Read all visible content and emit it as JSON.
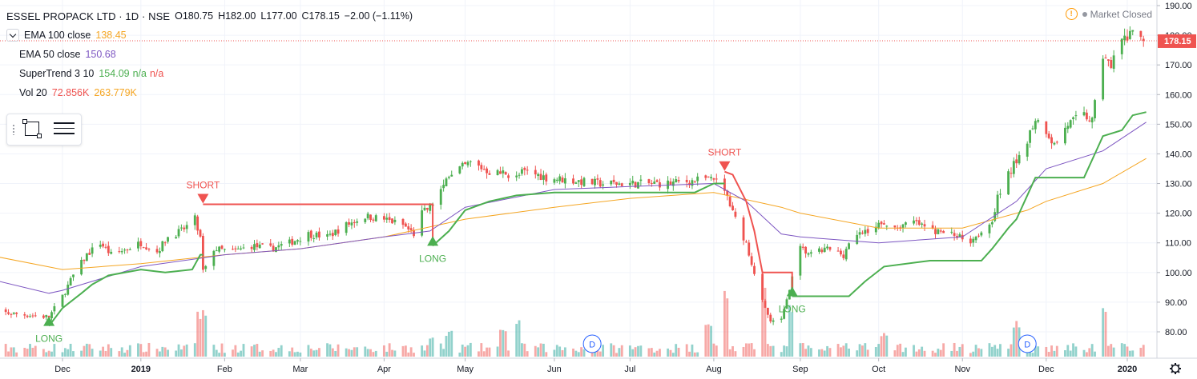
{
  "header": {
    "title": "ESSEL PROPACK LTD · 1D · NSE",
    "open": "O180.75",
    "high": "H182.00",
    "low": "L177.00",
    "close": "C178.15",
    "change": "−2.00 (−1.11%)"
  },
  "indicators": [
    {
      "name": "EMA 100 close",
      "value": "138.45",
      "color": "#f5a623"
    },
    {
      "name": "EMA 50 close",
      "value": "150.68",
      "color": "#7e57c2"
    },
    {
      "name": "SuperTrend 3 10",
      "value": "154.09 n/a n/a",
      "value_parts": [
        "154.09",
        "n/a",
        "n/a"
      ],
      "colors": [
        "#4caf50",
        "#4caf50",
        "#ef5350"
      ]
    },
    {
      "name": "Vol 20",
      "value": "72.856K 263.779K",
      "value_parts": [
        "72.856K",
        "263.779K"
      ],
      "colors": [
        "#ef5350",
        "#f5a623"
      ]
    }
  ],
  "market_status": "Market Closed",
  "colors": {
    "up": "#26a69a",
    "candle_up": "#4caf50",
    "down": "#ef5350",
    "ema100": "#f5a623",
    "ema50": "#7e57c2",
    "supertrend_up": "#4caf50",
    "supertrend_down": "#ef5350"
  },
  "chart_data": {
    "type": "candlestick",
    "symbol": "ESSEL PROPACK LTD",
    "interval": "1D",
    "exchange": "NSE",
    "ylim": [
      75,
      190
    ],
    "y_ticks": [
      80,
      90,
      100,
      110,
      120,
      130,
      140,
      150,
      160,
      170,
      180,
      190
    ],
    "x_ticks": [
      {
        "label": "Dec",
        "date": "2018-12-03"
      },
      {
        "label": "2019",
        "date": "2019-01-01"
      },
      {
        "label": "Feb",
        "date": "2019-02-01"
      },
      {
        "label": "Mar",
        "date": "2019-03-01"
      },
      {
        "label": "Apr",
        "date": "2019-04-01"
      },
      {
        "label": "May",
        "date": "2019-05-01"
      },
      {
        "label": "Jun",
        "date": "2019-06-03"
      },
      {
        "label": "Jul",
        "date": "2019-07-01"
      },
      {
        "label": "Aug",
        "date": "2019-08-01"
      },
      {
        "label": "Sep",
        "date": "2019-09-02"
      },
      {
        "label": "Oct",
        "date": "2019-10-01"
      },
      {
        "label": "Nov",
        "date": "2019-11-01"
      },
      {
        "label": "Dec",
        "date": "2019-12-02"
      },
      {
        "label": "2020",
        "date": "2020-01-01"
      }
    ],
    "last_price": 178.15,
    "last_price_label": "178.15",
    "close_path": [
      [
        "2018-11-05",
        87
      ],
      [
        "2018-11-16",
        86
      ],
      [
        "2018-11-28",
        85
      ],
      [
        "2018-12-03",
        92
      ],
      [
        "2018-12-07",
        99
      ],
      [
        "2018-12-12",
        106
      ],
      [
        "2018-12-17",
        110
      ],
      [
        "2018-12-21",
        106
      ],
      [
        "2018-12-27",
        108
      ],
      [
        "2019-01-01",
        110
      ],
      [
        "2019-01-07",
        107
      ],
      [
        "2019-01-11",
        112
      ],
      [
        "2019-01-16",
        114
      ],
      [
        "2019-01-21",
        118
      ],
      [
        "2019-01-23",
        111
      ],
      [
        "2019-01-24",
        100
      ],
      [
        "2019-01-28",
        108
      ],
      [
        "2019-02-04",
        107
      ],
      [
        "2019-02-11",
        109
      ],
      [
        "2019-02-18",
        108
      ],
      [
        "2019-02-25",
        110
      ],
      [
        "2019-03-04",
        113
      ],
      [
        "2019-03-11",
        112
      ],
      [
        "2019-03-18",
        116
      ],
      [
        "2019-03-25",
        119
      ],
      [
        "2019-04-01",
        118
      ],
      [
        "2019-04-08",
        116
      ],
      [
        "2019-04-12",
        113
      ],
      [
        "2019-04-15",
        120
      ],
      [
        "2019-04-18",
        122
      ],
      [
        "2019-04-22",
        128
      ],
      [
        "2019-04-25",
        133
      ],
      [
        "2019-04-29",
        135
      ],
      [
        "2019-05-03",
        137
      ],
      [
        "2019-05-10",
        134
      ],
      [
        "2019-05-17",
        133
      ],
      [
        "2019-05-24",
        134
      ],
      [
        "2019-05-31",
        132
      ],
      [
        "2019-06-10",
        131
      ],
      [
        "2019-06-20",
        130
      ],
      [
        "2019-07-01",
        130
      ],
      [
        "2019-07-15",
        130
      ],
      [
        "2019-07-25",
        131
      ],
      [
        "2019-08-01",
        132
      ],
      [
        "2019-08-05",
        128
      ],
      [
        "2019-08-08",
        120
      ],
      [
        "2019-08-13",
        110
      ],
      [
        "2019-08-16",
        100
      ],
      [
        "2019-08-19",
        90
      ],
      [
        "2019-08-22",
        83
      ],
      [
        "2019-08-26",
        84
      ],
      [
        "2019-08-29",
        95
      ],
      [
        "2019-09-02",
        108
      ],
      [
        "2019-09-06",
        106
      ],
      [
        "2019-09-12",
        108
      ],
      [
        "2019-09-18",
        106
      ],
      [
        "2019-09-20",
        110
      ],
      [
        "2019-09-26",
        114
      ],
      [
        "2019-10-01",
        116
      ],
      [
        "2019-10-07",
        115
      ],
      [
        "2019-10-14",
        117
      ],
      [
        "2019-10-21",
        114
      ],
      [
        "2019-10-28",
        113
      ],
      [
        "2019-11-04",
        111
      ],
      [
        "2019-11-08",
        114
      ],
      [
        "2019-11-12",
        118
      ],
      [
        "2019-11-14",
        125
      ],
      [
        "2019-11-18",
        133
      ],
      [
        "2019-11-21",
        138
      ],
      [
        "2019-11-25",
        145
      ],
      [
        "2019-11-28",
        152
      ],
      [
        "2019-12-02",
        148
      ],
      [
        "2019-12-05",
        143
      ],
      [
        "2019-12-10",
        150
      ],
      [
        "2019-12-16",
        153
      ],
      [
        "2019-12-19",
        151
      ],
      [
        "2019-12-23",
        173
      ],
      [
        "2019-12-26",
        170
      ],
      [
        "2019-12-30",
        178
      ],
      [
        "2020-01-03",
        180
      ],
      [
        "2020-01-07",
        178.15
      ]
    ],
    "series": [
      {
        "name": "EMA 100 close",
        "points": [
          [
            "2018-11-05",
            106
          ],
          [
            "2018-12-03",
            101
          ],
          [
            "2019-01-01",
            103
          ],
          [
            "2019-02-01",
            106
          ],
          [
            "2019-03-01",
            108
          ],
          [
            "2019-04-01",
            112
          ],
          [
            "2019-05-01",
            118
          ],
          [
            "2019-06-03",
            122
          ],
          [
            "2019-07-01",
            125
          ],
          [
            "2019-08-01",
            127
          ],
          [
            "2019-08-26",
            122
          ],
          [
            "2019-09-02",
            120
          ],
          [
            "2019-10-01",
            115
          ],
          [
            "2019-11-01",
            115
          ],
          [
            "2019-11-25",
            121
          ],
          [
            "2019-12-02",
            124
          ],
          [
            "2019-12-23",
            130
          ],
          [
            "2020-01-08",
            138.45
          ]
        ]
      },
      {
        "name": "EMA 50 close",
        "points": [
          [
            "2018-11-05",
            98
          ],
          [
            "2018-11-28",
            93
          ],
          [
            "2018-12-03",
            94
          ],
          [
            "2019-01-01",
            102
          ],
          [
            "2019-02-01",
            106
          ],
          [
            "2019-03-01",
            108
          ],
          [
            "2019-04-01",
            112
          ],
          [
            "2019-04-18",
            114
          ],
          [
            "2019-05-01",
            122
          ],
          [
            "2019-06-03",
            128
          ],
          [
            "2019-07-01",
            129
          ],
          [
            "2019-08-01",
            130
          ],
          [
            "2019-08-13",
            124
          ],
          [
            "2019-08-26",
            113
          ],
          [
            "2019-09-02",
            112
          ],
          [
            "2019-10-01",
            110
          ],
          [
            "2019-11-01",
            112
          ],
          [
            "2019-11-21",
            124
          ],
          [
            "2019-12-02",
            135
          ],
          [
            "2019-12-23",
            141
          ],
          [
            "2020-01-08",
            150.68
          ]
        ]
      },
      {
        "name": "SuperTrend 3 10",
        "segments": [
          {
            "trend": "up",
            "points": [
              [
                "2018-11-28",
                82
              ],
              [
                "2018-12-03",
                88
              ],
              [
                "2018-12-10",
                93
              ],
              [
                "2018-12-14",
                96
              ],
              [
                "2018-12-20",
                99
              ],
              [
                "2019-01-01",
                101
              ],
              [
                "2019-01-10",
                100
              ],
              [
                "2019-01-20",
                101
              ],
              [
                "2019-01-23",
                106
              ],
              [
                "2019-01-24",
                106
              ]
            ]
          },
          {
            "trend": "down",
            "points": [
              [
                "2019-01-24",
                123
              ],
              [
                "2019-04-19",
                123
              ],
              [
                "2019-04-19",
                109
              ]
            ]
          },
          {
            "trend": "up",
            "points": [
              [
                "2019-04-19",
                109
              ],
              [
                "2019-04-25",
                114
              ],
              [
                "2019-05-01",
                121
              ],
              [
                "2019-05-10",
                124
              ],
              [
                "2019-05-20",
                126
              ],
              [
                "2019-06-03",
                127
              ],
              [
                "2019-07-01",
                127
              ],
              [
                "2019-07-25",
                127
              ],
              [
                "2019-08-01",
                130
              ],
              [
                "2019-08-05",
                130
              ]
            ]
          },
          {
            "trend": "down",
            "points": [
              [
                "2019-08-05",
                134
              ],
              [
                "2019-08-08",
                133
              ],
              [
                "2019-08-13",
                124
              ],
              [
                "2019-08-16",
                114
              ],
              [
                "2019-08-19",
                100
              ],
              [
                "2019-08-30",
                100
              ],
              [
                "2019-08-30",
                92
              ]
            ]
          },
          {
            "trend": "up",
            "points": [
              [
                "2019-08-30",
                92
              ],
              [
                "2019-09-20",
                92
              ],
              [
                "2019-09-26",
                97
              ],
              [
                "2019-10-03",
                102
              ],
              [
                "2019-10-20",
                104
              ],
              [
                "2019-11-01",
                104
              ],
              [
                "2019-11-08",
                104
              ],
              [
                "2019-11-12",
                108
              ],
              [
                "2019-11-18",
                115
              ],
              [
                "2019-11-21",
                118
              ],
              [
                "2019-11-25",
                126
              ],
              [
                "2019-11-28",
                132
              ],
              [
                "2019-12-16",
                132
              ],
              [
                "2019-12-20",
                140
              ],
              [
                "2019-12-23",
                146
              ],
              [
                "2019-12-30",
                148
              ],
              [
                "2020-01-03",
                153
              ],
              [
                "2020-01-08",
                154.09
              ]
            ]
          }
        ]
      }
    ],
    "signals": [
      {
        "type": "LONG",
        "label": "LONG",
        "date": "2018-11-28",
        "price": 82
      },
      {
        "type": "SHORT",
        "label": "SHORT",
        "date": "2019-01-24",
        "price": 123
      },
      {
        "type": "LONG",
        "label": "LONG",
        "date": "2019-04-19",
        "price": 109
      },
      {
        "type": "SHORT",
        "label": "SHORT",
        "date": "2019-08-05",
        "price": 134
      },
      {
        "type": "LONG",
        "label": "LONG",
        "date": "2019-08-30",
        "price": 92
      }
    ],
    "volume_ratio_spikes": [
      {
        "date": "2019-01-23",
        "ratio": 1.0
      },
      {
        "date": "2019-01-25",
        "ratio": 1.0
      },
      {
        "date": "2019-04-19",
        "ratio": 0.45
      },
      {
        "date": "2019-04-25",
        "ratio": 0.55
      },
      {
        "date": "2019-05-15",
        "ratio": 0.6
      },
      {
        "date": "2019-05-20",
        "ratio": 0.85
      },
      {
        "date": "2019-07-30",
        "ratio": 0.7
      },
      {
        "date": "2019-08-05",
        "ratio": 1.5
      },
      {
        "date": "2019-08-19",
        "ratio": 1.7
      },
      {
        "date": "2019-08-30",
        "ratio": 1.2
      },
      {
        "date": "2019-10-03",
        "ratio": 0.55
      },
      {
        "date": "2019-11-21",
        "ratio": 0.75
      },
      {
        "date": "2019-12-23",
        "ratio": 1.2
      }
    ],
    "dividend_markers": [
      {
        "label": "D",
        "date": "2019-06-17"
      },
      {
        "label": "D",
        "date": "2019-11-25"
      }
    ]
  }
}
